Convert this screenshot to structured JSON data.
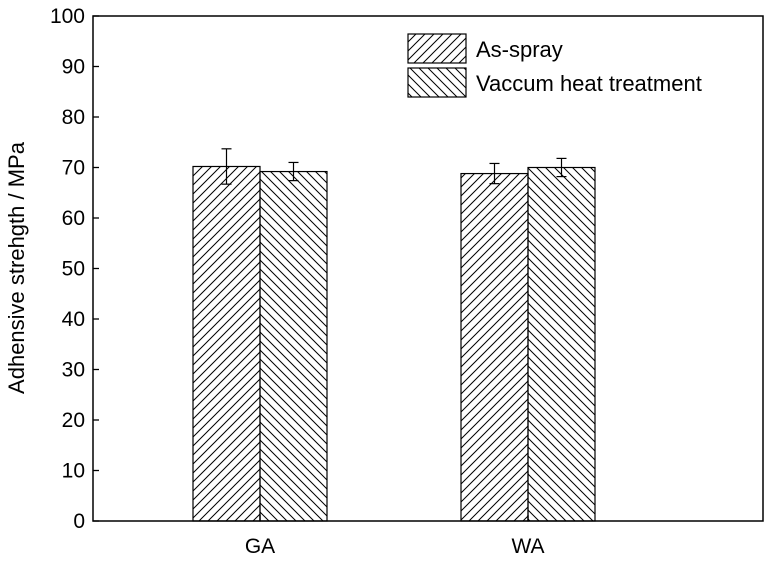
{
  "chart_data": {
    "type": "bar",
    "title": "",
    "xlabel": "",
    "ylabel": "Adhensive strehgth / MPa",
    "ylim": [
      0,
      100
    ],
    "yticks": [
      0,
      10,
      20,
      30,
      40,
      50,
      60,
      70,
      80,
      90,
      100
    ],
    "categories": [
      "GA",
      "WA"
    ],
    "series": [
      {
        "name": "As-spray",
        "values": [
          70.2,
          68.8
        ],
        "errors": [
          3.5,
          2.0
        ],
        "pattern": "forward-hatch"
      },
      {
        "name": "Vaccum heat treatment",
        "values": [
          69.2,
          70.0
        ],
        "errors": [
          1.8,
          1.8
        ],
        "pattern": "backward-hatch"
      }
    ],
    "legend_position": "top-right",
    "grid": false,
    "colors": {
      "line": "#000000",
      "fill": "#ffffff"
    }
  }
}
